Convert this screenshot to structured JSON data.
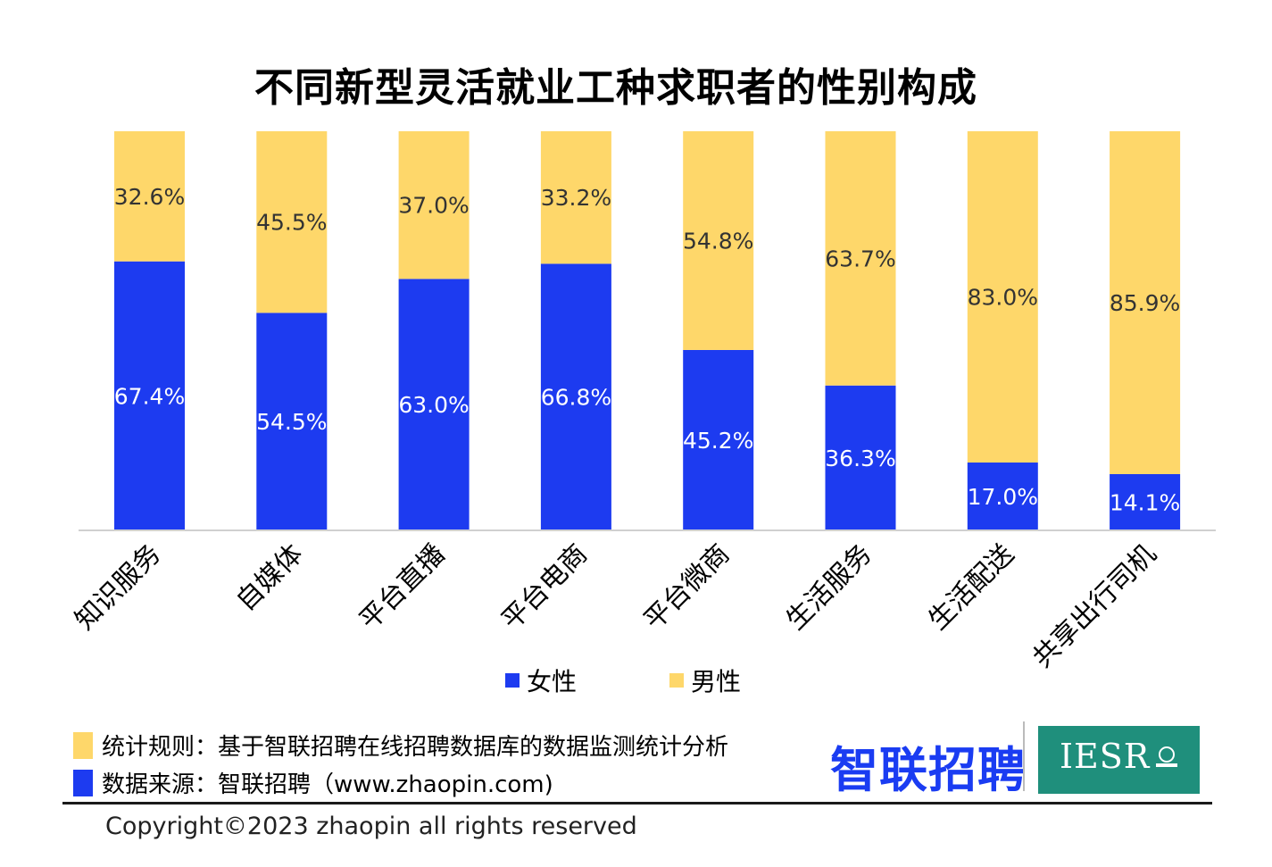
{
  "chart_data": {
    "type": "bar",
    "stacked": true,
    "percent": true,
    "title": "不同新型灵活就业工种求职者的性别构成",
    "categories": [
      "知识服务",
      "自媒体",
      "平台直播",
      "平台电商",
      "平台微商",
      "生活服务",
      "生活配送",
      "共享出行司机"
    ],
    "series": [
      {
        "name": "女性",
        "color": "#1d3bf0",
        "values": [
          67.4,
          54.5,
          63.0,
          66.8,
          45.2,
          36.3,
          17.0,
          14.1
        ],
        "labels": [
          "67.4%",
          "54.5%",
          "63.0%",
          "66.8%",
          "45.2%",
          "36.3%",
          "17.0%",
          "14.1%"
        ]
      },
      {
        "name": "男性",
        "color": "#fed76a",
        "values": [
          32.6,
          45.5,
          37.0,
          33.2,
          54.8,
          63.7,
          83.0,
          85.9
        ],
        "labels": [
          "32.6%",
          "45.5%",
          "37.0%",
          "33.2%",
          "54.8%",
          "63.7%",
          "83.0%",
          "85.9%"
        ]
      }
    ],
    "ylim": [
      0,
      100
    ],
    "grid": false,
    "legend_position": "bottom"
  },
  "footnotes": {
    "rule_text": "统计规则：基于智联招聘在线招聘数据库的数据监测统计分析",
    "source_text": "数据来源：智联招聘（www.zhaopin.com)"
  },
  "logos": {
    "zhaopin": "智联招聘",
    "iesr": "IESR"
  },
  "copyright": "Copyright©2023 zhaopin all rights reserved",
  "colors": {
    "female": "#1d3bf0",
    "male": "#fed76a",
    "iesr_bg": "#1f8f7c",
    "zhaopin_brand": "#1a3cf2"
  }
}
